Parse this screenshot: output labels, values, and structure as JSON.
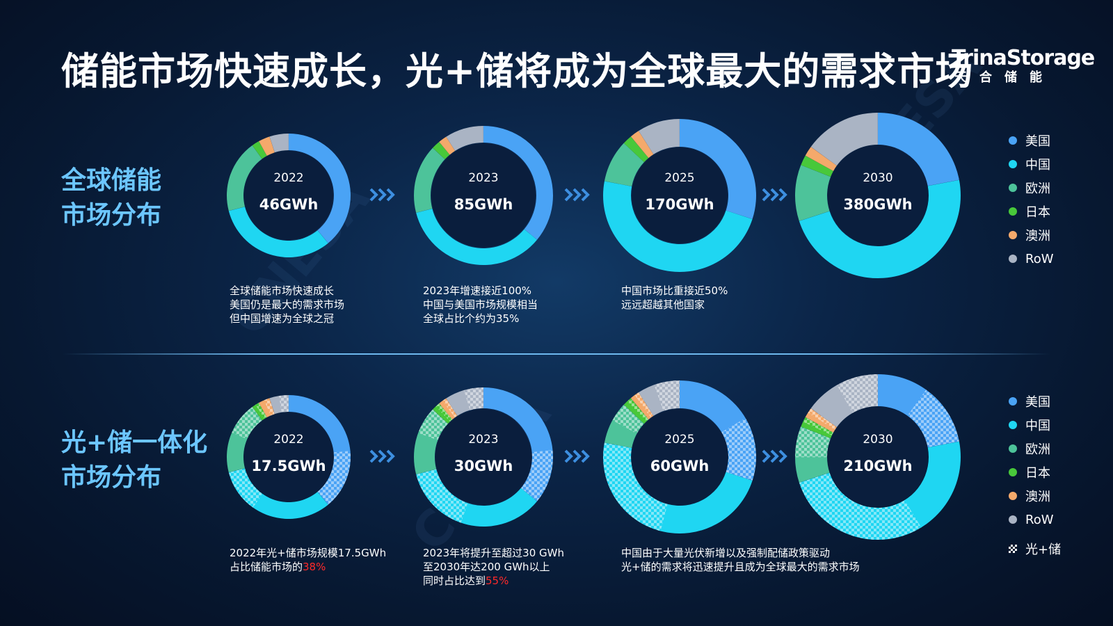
{
  "page": {
    "title": "储能市场快速成长，光+储将成为全球最大的需求市场",
    "logo_main": "TrinaStorage",
    "logo_sub": "天合储能",
    "watermark": "CNESA"
  },
  "colors": {
    "美国": "#4aa3f5",
    "中国": "#1fd6f2",
    "欧洲": "#4dc39a",
    "日本": "#48c83a",
    "澳洲": "#f4a96b",
    "RoW": "#aab4c4",
    "accent_title": "#6cc6ff",
    "highlight": "#ff2a2a"
  },
  "sections": {
    "global": {
      "title_line1": "全球储能",
      "title_line2": "市场分布",
      "notes": [
        [
          "全球储能市场快速成长",
          "美国仍是最大的需求市场",
          "但中国增速为全球之冠"
        ],
        [
          "2023年增速接近100%",
          "中国与美国市场规模相当",
          "全球占比个约为35%"
        ],
        [
          "中国市场比重接近50%",
          "远远超越其他国家"
        ]
      ]
    },
    "pv": {
      "title_line1": "光+储一体化",
      "title_line2": "市场分布",
      "notes": [
        {
          "lines": [
            "2022年光+储市场规模17.5GWh",
            "占比储能市场的"
          ],
          "highlight": "38%"
        },
        {
          "lines": [
            "2023年将提升至超过30  GWh",
            "至2030年达200  GWh以上",
            "同时占比达到"
          ],
          "highlight": "55%"
        },
        {
          "lines": [
            "中国由于大量光伏新增以及强制配储政策驱动",
            "光+储的需求将迅速提升且成为全球最大的需求市场"
          ],
          "highlight": ""
        }
      ]
    }
  },
  "legend": {
    "items": [
      "美国",
      "中国",
      "欧洲",
      "日本",
      "澳洲",
      "RoW"
    ],
    "pattern_label": "光+储"
  },
  "chart_data": [
    {
      "type": "pie",
      "name": "全球储能",
      "year": "2022",
      "total": "46GWh",
      "slices": [
        {
          "label": "美国",
          "value": 39
        },
        {
          "label": "中国",
          "value": 32
        },
        {
          "label": "欧洲",
          "value": 19
        },
        {
          "label": "日本",
          "value": 2
        },
        {
          "label": "澳洲",
          "value": 3
        },
        {
          "label": "RoW",
          "value": 5
        }
      ]
    },
    {
      "type": "pie",
      "name": "全球储能",
      "year": "2023",
      "total": "85GWh",
      "slices": [
        {
          "label": "美国",
          "value": 36
        },
        {
          "label": "中国",
          "value": 35
        },
        {
          "label": "欧洲",
          "value": 16
        },
        {
          "label": "日本",
          "value": 2
        },
        {
          "label": "澳洲",
          "value": 2
        },
        {
          "label": "RoW",
          "value": 9
        }
      ]
    },
    {
      "type": "pie",
      "name": "全球储能",
      "year": "2025",
      "total": "170GWh",
      "slices": [
        {
          "label": "美国",
          "value": 30
        },
        {
          "label": "中国",
          "value": 48
        },
        {
          "label": "欧洲",
          "value": 9
        },
        {
          "label": "日本",
          "value": 2
        },
        {
          "label": "澳洲",
          "value": 2
        },
        {
          "label": "RoW",
          "value": 9
        }
      ]
    },
    {
      "type": "pie",
      "name": "全球储能",
      "year": "2030",
      "total": "380GWh",
      "slices": [
        {
          "label": "美国",
          "value": 22
        },
        {
          "label": "中国",
          "value": 48
        },
        {
          "label": "欧洲",
          "value": 11
        },
        {
          "label": "日本",
          "value": 2
        },
        {
          "label": "澳洲",
          "value": 2
        },
        {
          "label": "RoW",
          "value": 15
        }
      ]
    },
    {
      "type": "pie",
      "name": "光+储一体化",
      "year": "2022",
      "total": "17.5GWh",
      "slices": [
        {
          "label": "美国",
          "value": 39,
          "pv_share": 0.4
        },
        {
          "label": "中国",
          "value": 32,
          "pv_share": 0.35
        },
        {
          "label": "欧洲",
          "value": 19,
          "pv_share": 0.45
        },
        {
          "label": "日本",
          "value": 2,
          "pv_share": 0.5
        },
        {
          "label": "澳洲",
          "value": 3,
          "pv_share": 0.5
        },
        {
          "label": "RoW",
          "value": 5,
          "pv_share": 0.5
        }
      ]
    },
    {
      "type": "pie",
      "name": "光+储一体化",
      "year": "2023",
      "total": "30GWh",
      "slices": [
        {
          "label": "美国",
          "value": 36,
          "pv_share": 0.35
        },
        {
          "label": "中国",
          "value": 35,
          "pv_share": 0.45
        },
        {
          "label": "欧洲",
          "value": 16,
          "pv_share": 0.4
        },
        {
          "label": "日本",
          "value": 2,
          "pv_share": 0.5
        },
        {
          "label": "澳洲",
          "value": 2,
          "pv_share": 0.5
        },
        {
          "label": "RoW",
          "value": 9,
          "pv_share": 0.5
        }
      ]
    },
    {
      "type": "pie",
      "name": "光+储一体化",
      "year": "2025",
      "total": "60GWh",
      "slices": [
        {
          "label": "美国",
          "value": 30,
          "pv_share": 0.45
        },
        {
          "label": "中国",
          "value": 48,
          "pv_share": 0.5
        },
        {
          "label": "欧洲",
          "value": 9,
          "pv_share": 0.45
        },
        {
          "label": "日本",
          "value": 2,
          "pv_share": 0.5
        },
        {
          "label": "澳洲",
          "value": 2,
          "pv_share": 0.5
        },
        {
          "label": "RoW",
          "value": 9,
          "pv_share": 0.6
        }
      ]
    },
    {
      "type": "pie",
      "name": "光+储一体化",
      "year": "2030",
      "total": "210GWh",
      "slices": [
        {
          "label": "美国",
          "value": 22,
          "pv_share": 0.55
        },
        {
          "label": "中国",
          "value": 48,
          "pv_share": 0.6
        },
        {
          "label": "欧洲",
          "value": 11,
          "pv_share": 0.55
        },
        {
          "label": "日本",
          "value": 2,
          "pv_share": 0.5
        },
        {
          "label": "澳洲",
          "value": 2,
          "pv_share": 0.5
        },
        {
          "label": "RoW",
          "value": 15,
          "pv_share": 0.55
        }
      ]
    }
  ]
}
